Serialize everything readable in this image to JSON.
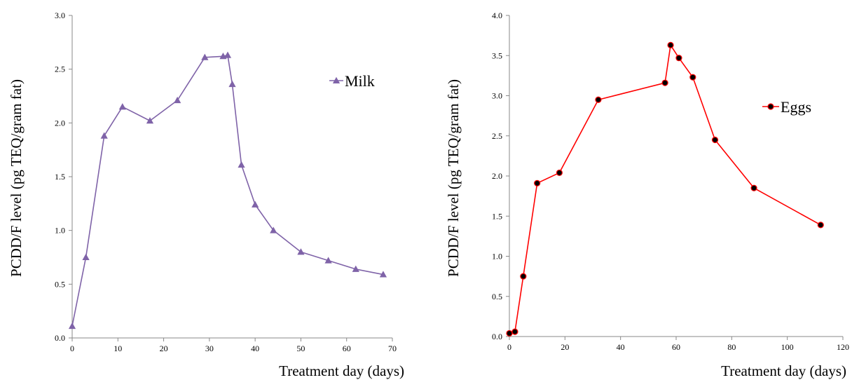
{
  "chart_data": [
    {
      "type": "line",
      "xlabel": "Treatment day (days)",
      "ylabel": "PCDD/F level (pg TEQ/gram fat)",
      "xlim": [
        0,
        70
      ],
      "ylim": [
        0,
        3.0
      ],
      "xticks": [
        0,
        10,
        20,
        30,
        40,
        50,
        60,
        70
      ],
      "yticks": [
        0.0,
        0.5,
        1.0,
        1.5,
        2.0,
        2.5,
        3.0
      ],
      "xtick_labels": [
        "0",
        "10",
        "20",
        "30",
        "40",
        "50",
        "60",
        "70"
      ],
      "ytick_labels": [
        "0.0",
        "0.5",
        "1.0",
        "1.5",
        "2.0",
        "2.5",
        "3.0"
      ],
      "grid": false,
      "legend": "top-right",
      "series": [
        {
          "name": "Milk",
          "color": "#7f63a8",
          "marker": "triangle",
          "x": [
            0,
            3,
            7,
            11,
            17,
            23,
            29,
            33,
            34,
            35,
            37,
            40,
            44,
            50,
            56,
            62,
            68
          ],
          "y": [
            0.11,
            0.75,
            1.88,
            2.15,
            2.02,
            2.21,
            2.61,
            2.62,
            2.63,
            2.36,
            1.61,
            1.24,
            1.0,
            0.8,
            0.72,
            0.64,
            0.59
          ]
        }
      ]
    },
    {
      "type": "line",
      "xlabel": "Treatment day (days)",
      "ylabel": "PCDD/F level (pg TEQ/gram fat)",
      "xlim": [
        0,
        120
      ],
      "ylim": [
        0,
        4.0
      ],
      "xticks": [
        0,
        20,
        40,
        60,
        80,
        100,
        120
      ],
      "yticks": [
        0.0,
        0.5,
        1.0,
        1.5,
        2.0,
        2.5,
        3.0,
        3.5,
        4.0
      ],
      "xtick_labels": [
        "0",
        "20",
        "40",
        "60",
        "80",
        "100",
        "120"
      ],
      "ytick_labels": [
        "0.0",
        "0.5",
        "1.0",
        "1.5",
        "2.0",
        "2.5",
        "3.0",
        "3.5",
        "4.0"
      ],
      "grid": false,
      "legend": "top-right",
      "series": [
        {
          "name": "Eggs",
          "color": "#ff0000",
          "marker": "circle",
          "x": [
            0,
            2,
            5,
            10,
            18,
            32,
            56,
            58,
            61,
            66,
            74,
            88,
            112
          ],
          "y": [
            0.04,
            0.06,
            0.75,
            1.91,
            2.04,
            2.95,
            3.16,
            3.63,
            3.47,
            3.23,
            2.45,
            1.85,
            1.39
          ]
        }
      ]
    }
  ]
}
